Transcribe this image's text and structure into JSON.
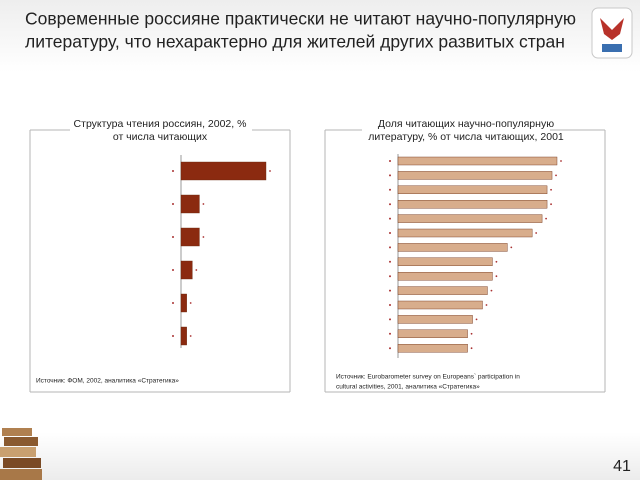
{
  "header": {
    "title": [
      "Современные россияне практически не читают  научно-популярную",
      "литературу,  что нехарактерно для жителей других развитых стран"
    ]
  },
  "page_number": "41",
  "chart_data": [
    {
      "type": "bar",
      "orientation": "horizontal",
      "title": [
        "Структура чтения россиян, 2002, %",
        "от числа читающих"
      ],
      "categories": [
        null,
        null,
        null,
        null,
        null,
        null
      ],
      "values": [
        60,
        13,
        13,
        8,
        4,
        4
      ],
      "color": "#8b2a10",
      "source": [
        "Источник: ФОМ, 2002, аналитика «Стратегика»"
      ]
    },
    {
      "type": "bar",
      "orientation": "horizontal",
      "title": [
        "Доля читающих научно-популярную",
        "литературу, % от числа читающих, 2001"
      ],
      "categories": [
        null,
        null,
        null,
        null,
        null,
        null,
        null,
        null,
        null,
        null,
        null,
        null,
        null,
        null
      ],
      "values": [
        32,
        31,
        30,
        30,
        29,
        27,
        22,
        19,
        19,
        18,
        17,
        15,
        14,
        14
      ],
      "color": "#d8ad8c",
      "source": [
        "Источник: Eurobarometer survey on Europeans` participation in",
        "cultural activities, 2001, аналитика «Стратегика»"
      ]
    }
  ]
}
